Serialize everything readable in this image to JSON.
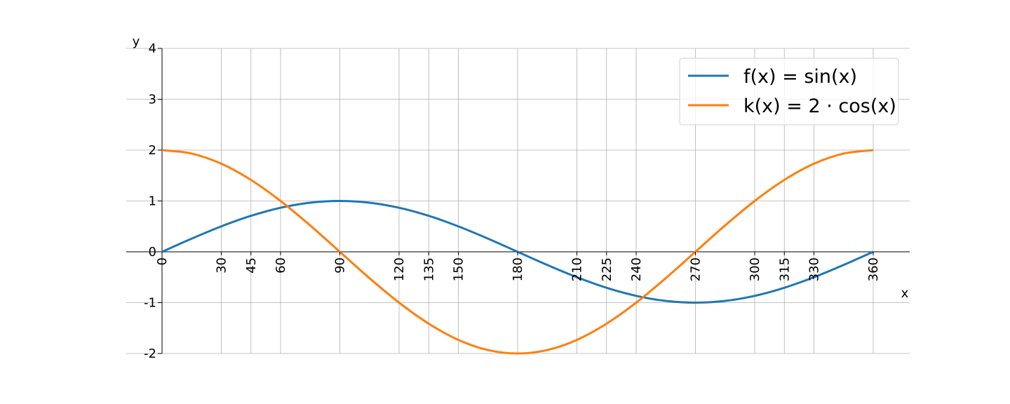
{
  "chart_data": {
    "type": "line",
    "title": "",
    "xlabel": "x",
    "ylabel": "y",
    "xlim": [
      0,
      360
    ],
    "ylim": [
      -2,
      4
    ],
    "grid": true,
    "legend_position": "top-right",
    "x_ticks": [
      0,
      30,
      45,
      60,
      90,
      120,
      135,
      150,
      180,
      210,
      225,
      240,
      270,
      300,
      315,
      330,
      360
    ],
    "x_tick_labels": [
      "0",
      "30",
      "45",
      "60",
      "90",
      "120",
      "135",
      "150",
      "180",
      "210",
      "225",
      "240",
      "270",
      "300",
      "315",
      "330",
      "360"
    ],
    "y_ticks": [
      -2,
      -1,
      0,
      1,
      2,
      3,
      4
    ],
    "y_tick_labels": [
      "-2",
      "-1",
      "0",
      "1",
      "2",
      "3",
      "4"
    ],
    "x": [
      0,
      15,
      30,
      45,
      60,
      75,
      90,
      105,
      120,
      135,
      150,
      165,
      180,
      195,
      210,
      225,
      240,
      255,
      270,
      285,
      300,
      315,
      330,
      345,
      360
    ],
    "series": [
      {
        "name": "f(x) = sin(x)",
        "color": "#1f77b4",
        "values": [
          0,
          0.259,
          0.5,
          0.707,
          0.866,
          0.966,
          1,
          0.966,
          0.866,
          0.707,
          0.5,
          0.259,
          0,
          -0.259,
          -0.5,
          -0.707,
          -0.866,
          -0.966,
          -1,
          -0.966,
          -0.866,
          -0.707,
          -0.5,
          -0.259,
          0
        ]
      },
      {
        "name": "k(x) = 2 · cos(x)",
        "color": "#ff7f0e",
        "values": [
          2,
          1.932,
          1.732,
          1.414,
          1,
          0.518,
          0,
          -0.518,
          -1,
          -1.414,
          -1.732,
          -1.932,
          -2,
          -1.932,
          -1.732,
          -1.414,
          -1,
          -0.518,
          0,
          0.518,
          1,
          1.414,
          1.732,
          1.932,
          2
        ]
      }
    ]
  }
}
